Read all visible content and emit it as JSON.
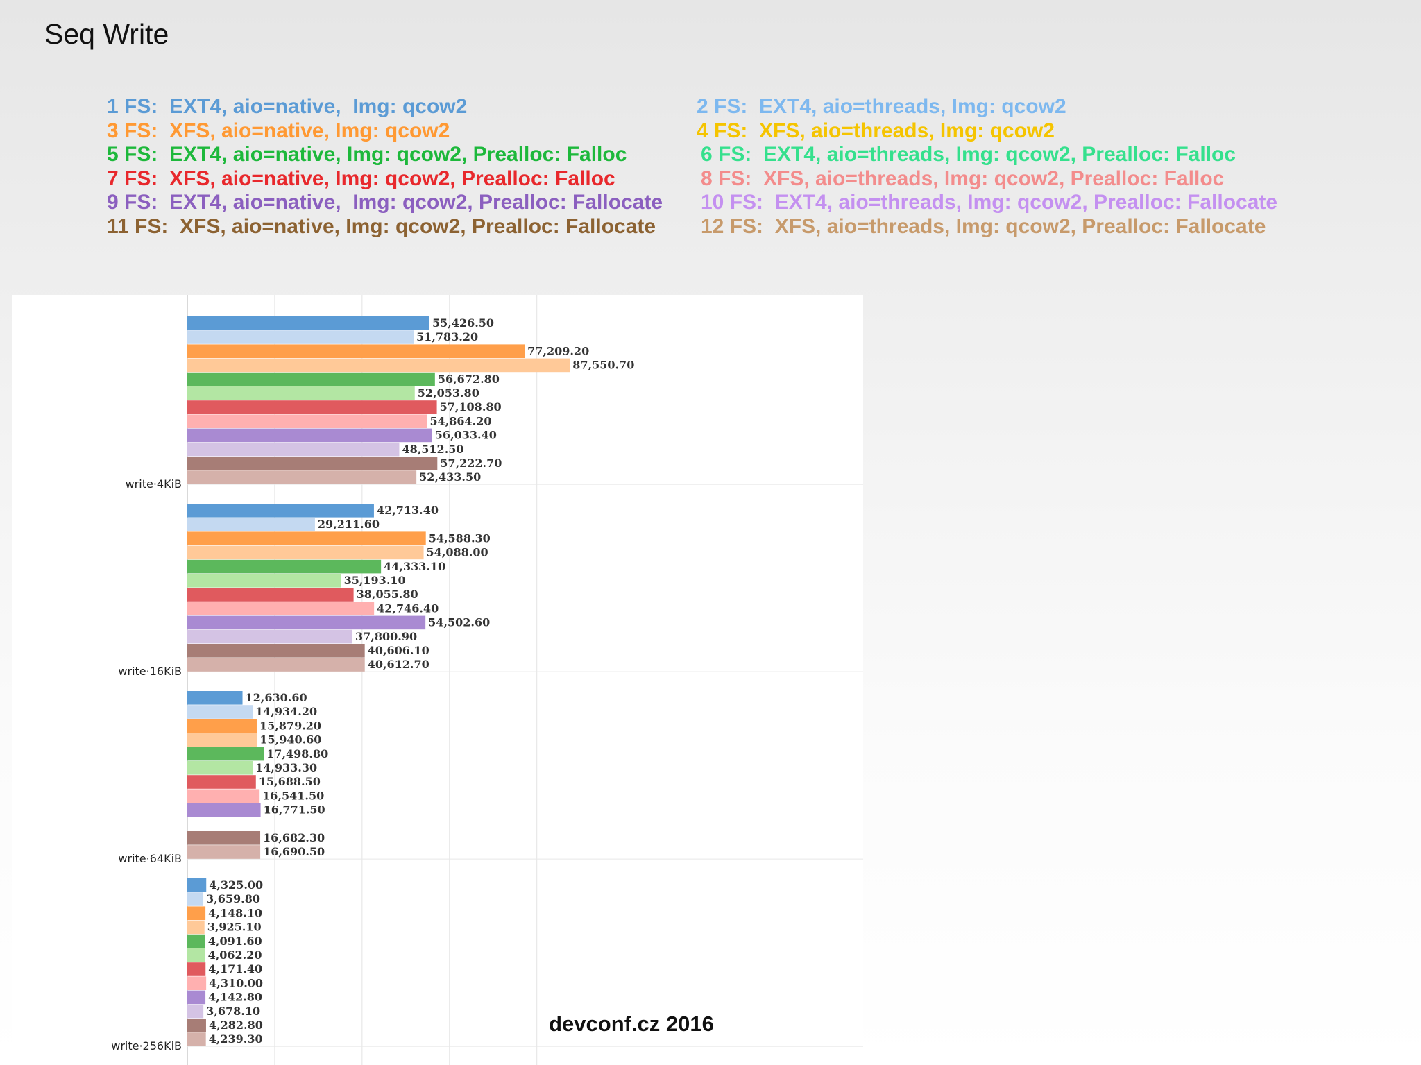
{
  "title": "Seq Write",
  "footer": "devconf.cz 2016",
  "legend": [
    {
      "label": "1 FS:  EXT4, aio=native,  Img: qcow2",
      "color": "#5b9bd5"
    },
    {
      "label": "2 FS:  EXT4, aio=threads, Img: qcow2",
      "color": "#7db8ef"
    },
    {
      "label": "3 FS:  XFS, aio=native, Img: qcow2",
      "color": "#ff9933"
    },
    {
      "label": "4 FS:  XFS, aio=threads, Img: qcow2",
      "color": "#f5c400"
    },
    {
      "label": "5 FS:  EXT4, aio=native, Img: qcow2, Prealloc: Falloc",
      "color": "#1db83b"
    },
    {
      "label": "6 FS:  EXT4, aio=threads, Img: qcow2, Prealloc: Falloc",
      "color": "#35e08d"
    },
    {
      "label": "7 FS:  XFS, aio=native, Img: qcow2, Prealloc: Falloc",
      "color": "#e8282c"
    },
    {
      "label": "8 FS:  XFS, aio=threads, Img: qcow2, Prealloc: Falloc",
      "color": "#f38c8c"
    },
    {
      "label": "9 FS:  EXT4, aio=native,  Img: qcow2, Prealloc: Fallocate",
      "color": "#8b5fbf"
    },
    {
      "label": "10 FS:  EXT4, aio=threads, Img: qcow2, Prealloc: Fallocate",
      "color": "#c490f0"
    },
    {
      "label": "11 FS:  XFS, aio=native, Img: qcow2, Prealloc: Fallocate",
      "color": "#8c6232"
    },
    {
      "label": "12 FS:  XFS, aio=threads, Img: qcow2, Prealloc: Fallocate",
      "color": "#c79a6b"
    }
  ],
  "chart_data": {
    "type": "bar",
    "orientation": "horizontal",
    "categories": [
      "write·4KiB",
      "write·16KiB",
      "write·64KiB",
      "write·256KiB"
    ],
    "grid": true,
    "series_colors": [
      "#5b9bd5",
      "#c4d9f1",
      "#ff9f4a",
      "#ffc998",
      "#5cb85c",
      "#b3e6a3",
      "#e05a5e",
      "#ffb0b0",
      "#a98ad2",
      "#d4c3e4",
      "#a77d76",
      "#d5b1aa"
    ],
    "series_values": [
      [
        55426.5,
        51783.2,
        77209.2,
        87550.7,
        56672.8,
        52053.8,
        57108.8,
        54864.2,
        56033.4,
        48512.5,
        57222.7,
        52433.5
      ],
      [
        42713.4,
        29211.6,
        54588.3,
        54088.0,
        44333.1,
        35193.1,
        38055.8,
        42746.4,
        54502.6,
        37800.9,
        40606.1,
        40612.7
      ],
      [
        12630.6,
        14934.2,
        15879.2,
        15940.6,
        17498.8,
        14933.3,
        15688.5,
        16541.5,
        16771.5,
        null,
        16682.3,
        16690.5
      ],
      [
        4325.0,
        3659.8,
        4148.1,
        3925.1,
        4091.6,
        4062.2,
        4171.4,
        4310.0,
        4142.8,
        3678.1,
        4282.8,
        4239.3
      ]
    ],
    "value_labels": [
      [
        "55,426.50",
        "51,783.20",
        "77,209.20",
        "87,550.70",
        "56,672.80",
        "52,053.80",
        "57,108.80",
        "54,864.20",
        "56,033.40",
        "48,512.50",
        "57,222.70",
        "52,433.50"
      ],
      [
        "42,713.40",
        "29,211.60",
        "54,588.30",
        "54,088.00",
        "44,333.10",
        "35,193.10",
        "38,055.80",
        "42,746.40",
        "54,502.60",
        "37,800.90",
        "40,606.10",
        "40,612.70"
      ],
      [
        "12,630.60",
        "14,934.20",
        "15,879.20",
        "15,940.60",
        "17,498.80",
        "14,933.30",
        "15,688.50",
        "16,541.50",
        "16,771.50",
        "",
        "16,682.30",
        "16,690.50"
      ],
      [
        "4,325.00",
        "3,659.80",
        "4,148.10",
        "3,925.10",
        "4,091.60",
        "4,062.20",
        "4,171.40",
        "4,310.00",
        "4,142.80",
        "3,678.10",
        "4,282.80",
        "4,239.30"
      ]
    ],
    "xlim": [
      0,
      97000
    ],
    "x_gridlines": [
      20000,
      40000,
      60000,
      80000
    ]
  }
}
